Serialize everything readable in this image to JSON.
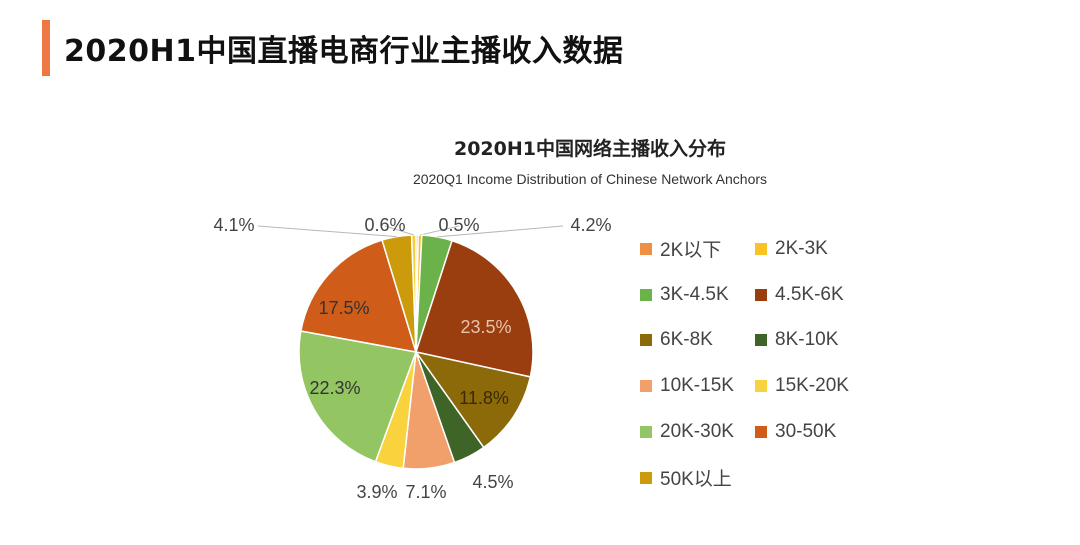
{
  "page": {
    "title": "2020H1中国直播电商行业主播收入数据"
  },
  "colors": {
    "accent": "#ee7743"
  },
  "chart_data": {
    "type": "pie",
    "title": "2020H1中国网络主播收入分布",
    "subtitle": "2020Q1 Income Distribution of Chinese Network Anchors",
    "legend_position": "right",
    "slices": [
      {
        "name": "2K以下",
        "value": 0.3,
        "label": "",
        "color": "#ee8f44"
      },
      {
        "name": "2K-3K",
        "value": 0.5,
        "label": "0.5%",
        "color": "#f7c325"
      },
      {
        "name": "3K-4.5K",
        "value": 4.2,
        "label": "4.2%",
        "color": "#6bb24b"
      },
      {
        "name": "4.5K-6K",
        "value": 23.5,
        "label": "23.5%",
        "color": "#9a3e0f"
      },
      {
        "name": "6K-8K",
        "value": 11.8,
        "label": "11.8%",
        "color": "#8d6a09"
      },
      {
        "name": "8K-10K",
        "value": 4.5,
        "label": "4.5%",
        "color": "#3f6428"
      },
      {
        "name": "10K-15K",
        "value": 7.1,
        "label": "7.1%",
        "color": "#f1a06c"
      },
      {
        "name": "15K-20K",
        "value": 3.9,
        "label": "3.9%",
        "color": "#f8d33e"
      },
      {
        "name": "20K-30K",
        "value": 22.3,
        "label": "22.3%",
        "color": "#93c563"
      },
      {
        "name": "30-50K",
        "value": 17.5,
        "label": "17.5%",
        "color": "#cf5c19"
      },
      {
        "name": "50K以上",
        "value": 4.1,
        "label": "4.1%",
        "color": "#cc9b0c"
      },
      {
        "name": "",
        "value": 0.6,
        "label": "0.6%",
        "color": "#f4d03f"
      }
    ]
  }
}
